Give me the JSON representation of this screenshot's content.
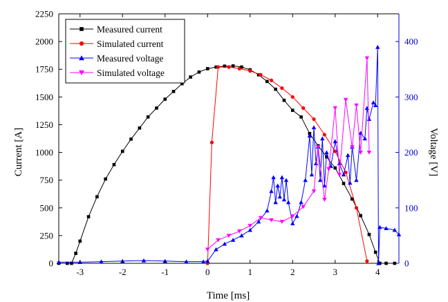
{
  "chart_data": {
    "type": "line",
    "xlabel": "Time [ms]",
    "ylabel_left": "Current [A]",
    "ylabel_right": "Voltage [V]",
    "xlim": [
      -3.5,
      4.5
    ],
    "ylim_left": [
      0,
      2250
    ],
    "ylim_right": [
      0,
      450
    ],
    "x_ticks": [
      -3,
      -2,
      -1,
      0,
      1,
      2,
      3,
      4
    ],
    "y_left_ticks": [
      0,
      250,
      500,
      750,
      1000,
      1250,
      1500,
      1750,
      2000,
      2250
    ],
    "y_right_ticks": [
      0,
      100,
      200,
      300,
      400
    ],
    "grid": false,
    "legend_position": "top-left",
    "colors": {
      "measured_current": "#000000",
      "simulated_current": "#ff0000",
      "measured_voltage": "#0000ff",
      "simulated_voltage": "#ff00ff",
      "right_axis": "#0000cc"
    },
    "series": [
      {
        "name": "Measured current",
        "axis": "left",
        "marker": "square",
        "color": "#000000",
        "x": [
          -3.5,
          -3.3,
          -3.2,
          -3.1,
          -3.0,
          -2.8,
          -2.6,
          -2.4,
          -2.2,
          -2.0,
          -1.8,
          -1.6,
          -1.4,
          -1.2,
          -1.0,
          -0.8,
          -0.6,
          -0.4,
          -0.2,
          0.0,
          0.2,
          0.4,
          0.6,
          0.8,
          1.0,
          1.2,
          1.4,
          1.6,
          1.8,
          2.0,
          2.2,
          2.4,
          2.6,
          2.8,
          3.0,
          3.2,
          3.4,
          3.6,
          3.8,
          3.95,
          4.05,
          4.2,
          4.4
        ],
        "y": [
          0,
          0,
          0,
          90,
          200,
          420,
          600,
          760,
          890,
          1010,
          1120,
          1220,
          1320,
          1400,
          1480,
          1550,
          1620,
          1680,
          1725,
          1755,
          1770,
          1778,
          1780,
          1770,
          1745,
          1700,
          1640,
          1570,
          1470,
          1380,
          1320,
          1170,
          1060,
          960,
          860,
          720,
          580,
          430,
          260,
          100,
          0,
          0,
          0
        ]
      },
      {
        "name": "Simulated current",
        "axis": "left",
        "marker": "circle",
        "color": "#ff0000",
        "x": [
          0.0,
          0.1,
          0.25,
          0.5,
          0.75,
          1.0,
          1.25,
          1.5,
          1.75,
          2.0,
          2.25,
          2.5,
          2.75,
          3.0,
          3.25,
          3.5,
          3.75
        ],
        "y": [
          0,
          1090,
          1770,
          1770,
          1755,
          1735,
          1700,
          1650,
          1580,
          1500,
          1400,
          1300,
          1160,
          1010,
          820,
          500,
          20
        ]
      },
      {
        "name": "Measured voltage",
        "axis": "right",
        "marker": "triangle-up",
        "color": "#0000ff",
        "x": [
          -3.5,
          -3.0,
          -2.5,
          -2.0,
          -1.5,
          -1.0,
          -0.5,
          -0.1,
          0.0,
          0.2,
          0.4,
          0.6,
          0.8,
          1.0,
          1.2,
          1.4,
          1.5,
          1.55,
          1.6,
          1.65,
          1.7,
          1.75,
          1.8,
          1.85,
          1.9,
          2.0,
          2.1,
          2.2,
          2.3,
          2.4,
          2.45,
          2.5,
          2.55,
          2.6,
          2.65,
          2.7,
          2.75,
          2.8,
          2.9,
          3.0,
          3.1,
          3.2,
          3.3,
          3.35,
          3.4,
          3.5,
          3.6,
          3.7,
          3.75,
          3.8,
          3.9,
          3.95,
          4.0,
          4.02,
          4.05,
          4.2,
          4.4,
          4.5
        ],
        "y": [
          2,
          2,
          3,
          4,
          5,
          4,
          3,
          3,
          4,
          25,
          35,
          42,
          50,
          60,
          75,
          95,
          130,
          155,
          110,
          140,
          120,
          155,
          115,
          150,
          110,
          72,
          85,
          110,
          150,
          230,
          160,
          245,
          180,
          210,
          150,
          225,
          140,
          200,
          175,
          220,
          180,
          160,
          195,
          145,
          210,
          150,
          235,
          225,
          280,
          260,
          290,
          285,
          390,
          0,
          65,
          63,
          60,
          52
        ]
      },
      {
        "name": "Simulated voltage",
        "axis": "right",
        "marker": "triangle-down",
        "color": "#ff00ff",
        "x": [
          0.0,
          0.25,
          0.5,
          0.75,
          1.0,
          1.25,
          1.5,
          1.75,
          2.0,
          2.25,
          2.5,
          2.6,
          2.75,
          2.85,
          3.0,
          3.1,
          3.25,
          3.4,
          3.5,
          3.6,
          3.75,
          3.8
        ],
        "y": [
          25,
          42,
          50,
          58,
          68,
          82,
          78,
          75,
          85,
          102,
          130,
          210,
          115,
          170,
          280,
          160,
          295,
          210,
          285,
          200,
          370,
          200
        ]
      }
    ]
  }
}
